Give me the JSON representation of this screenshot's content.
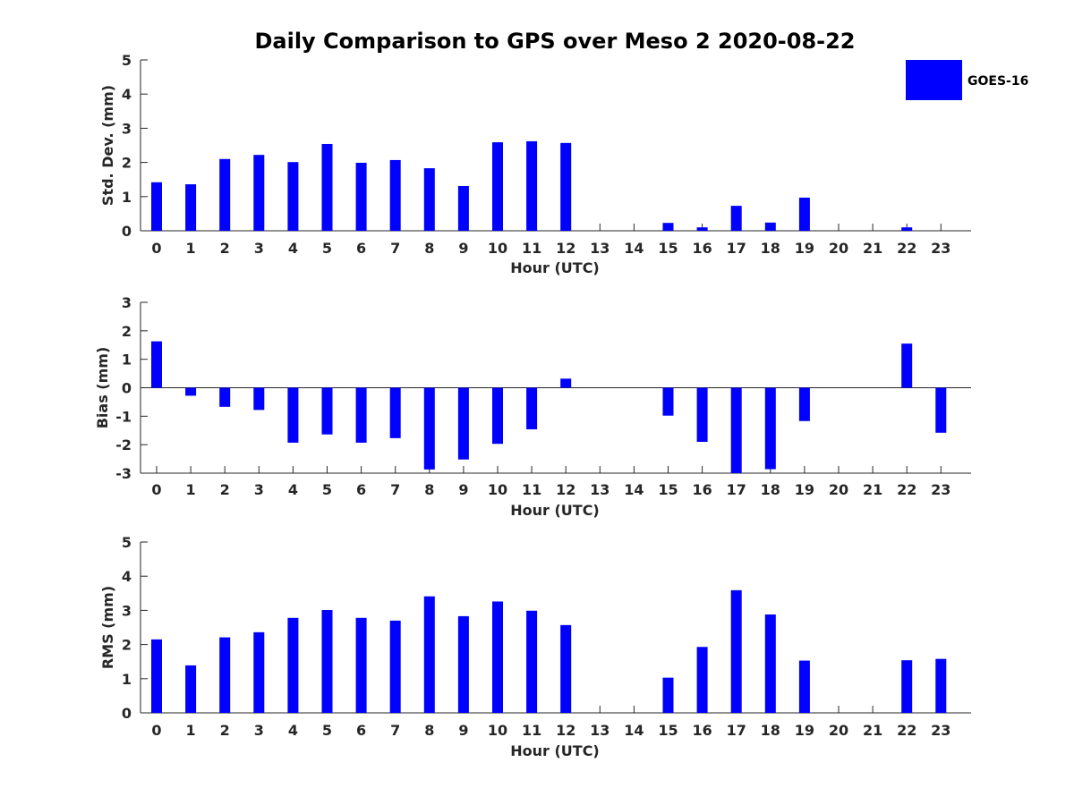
{
  "title": "Daily Comparison to GPS over Meso 2 2020-08-22",
  "colors": {
    "bar": "#0000ff",
    "axis": "#262626"
  },
  "legend": {
    "label": "GOES-16",
    "placement": "top-right"
  },
  "chart_data": [
    {
      "type": "bar",
      "ylabel": "Std. Dev. (mm)",
      "xlabel": "Hour (UTC)",
      "ylim": [
        0,
        5
      ],
      "yticks": [
        "0",
        "1",
        "2",
        "3",
        "4",
        "5"
      ],
      "categories": [
        "0",
        "1",
        "2",
        "3",
        "4",
        "5",
        "6",
        "7",
        "8",
        "9",
        "10",
        "11",
        "12",
        "13",
        "14",
        "15",
        "16",
        "17",
        "18",
        "19",
        "20",
        "21",
        "22",
        "23"
      ],
      "series": [
        {
          "name": "GOES-16",
          "values": [
            1.42,
            1.36,
            2.1,
            2.22,
            2.01,
            2.54,
            1.99,
            2.07,
            1.83,
            1.31,
            2.59,
            2.62,
            2.57,
            0,
            0,
            0.23,
            0.1,
            0.73,
            0.24,
            0.97,
            0,
            0,
            0.1,
            0
          ]
        }
      ]
    },
    {
      "type": "bar",
      "ylabel": "Bias (mm)",
      "xlabel": "Hour (UTC)",
      "ylim": [
        -3,
        3
      ],
      "yticks": [
        "-3",
        "-2",
        "-1",
        "0",
        "1",
        "2",
        "3"
      ],
      "zero_line": true,
      "categories": [
        "0",
        "1",
        "2",
        "3",
        "4",
        "5",
        "6",
        "7",
        "8",
        "9",
        "10",
        "11",
        "12",
        "13",
        "14",
        "15",
        "16",
        "17",
        "18",
        "19",
        "20",
        "21",
        "22",
        "23"
      ],
      "series": [
        {
          "name": "GOES-16",
          "values": [
            1.63,
            -0.28,
            -0.67,
            -0.78,
            -1.93,
            -1.64,
            -1.93,
            -1.77,
            -2.87,
            -2.52,
            -1.97,
            -1.46,
            0.32,
            0,
            0,
            -0.98,
            -1.9,
            -3.0,
            -2.86,
            -1.17,
            0,
            0,
            1.55,
            -1.58
          ]
        }
      ]
    },
    {
      "type": "bar",
      "ylabel": "RMS (mm)",
      "xlabel": "Hour (UTC)",
      "ylim": [
        0,
        5
      ],
      "yticks": [
        "0",
        "1",
        "2",
        "3",
        "4",
        "5"
      ],
      "categories": [
        "0",
        "1",
        "2",
        "3",
        "4",
        "5",
        "6",
        "7",
        "8",
        "9",
        "10",
        "11",
        "12",
        "13",
        "14",
        "15",
        "16",
        "17",
        "18",
        "19",
        "20",
        "21",
        "22",
        "23"
      ],
      "series": [
        {
          "name": "GOES-16",
          "values": [
            2.15,
            1.39,
            2.21,
            2.36,
            2.78,
            3.01,
            2.78,
            2.7,
            3.41,
            2.83,
            3.26,
            2.99,
            2.57,
            0,
            0,
            1.03,
            1.93,
            3.59,
            2.88,
            1.53,
            0,
            0,
            1.54,
            1.58
          ]
        }
      ]
    }
  ]
}
